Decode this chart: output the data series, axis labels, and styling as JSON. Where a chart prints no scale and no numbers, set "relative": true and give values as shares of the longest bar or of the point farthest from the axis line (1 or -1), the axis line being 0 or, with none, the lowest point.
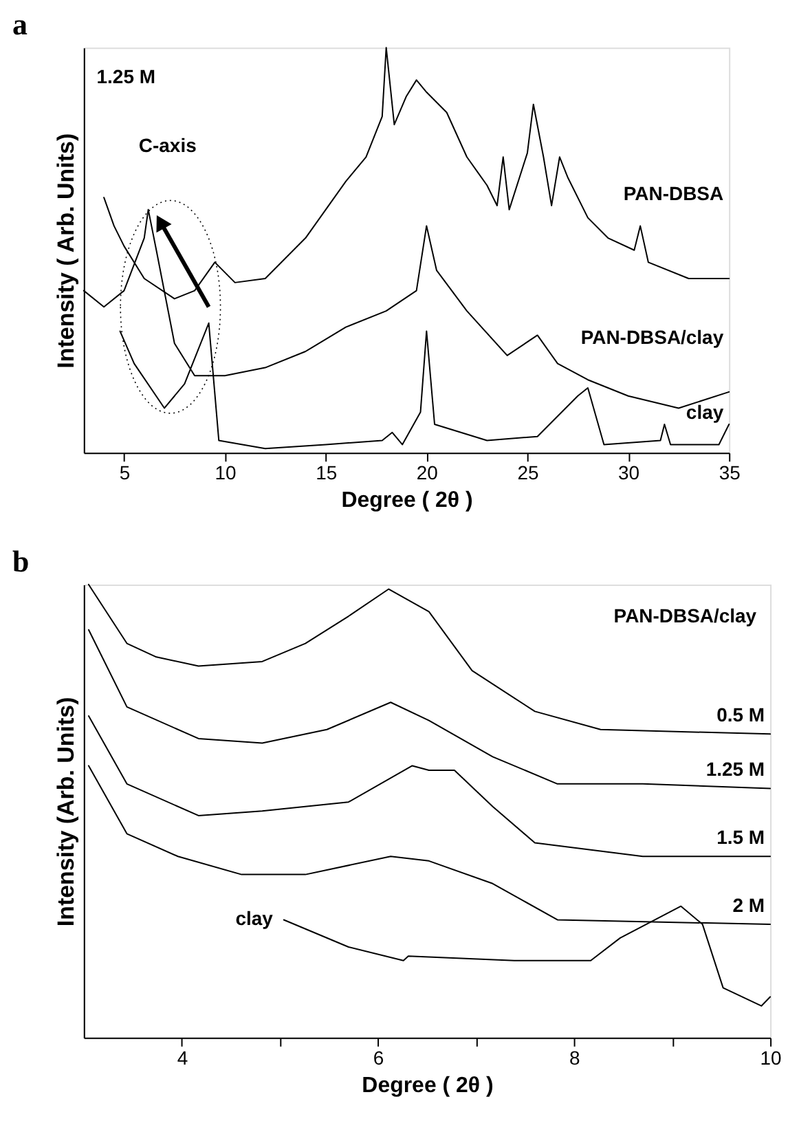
{
  "chart_data": [
    {
      "type": "line",
      "title": "a",
      "xlabel": "Degree ( 2θ )",
      "ylabel": "Intensity ( Arb. Units)",
      "annotations": [
        "1.25 M",
        "C-axis"
      ],
      "relative": true,
      "xlim": [
        3,
        35
      ],
      "xticks": [
        5,
        10,
        15,
        20,
        25,
        30,
        35
      ],
      "tick_labels": "x",
      "grid": false,
      "legend": false,
      "series": [
        {
          "name": "PAN-DBSA",
          "color": "#000000",
          "x": [
            4,
            4.5,
            5,
            6,
            7.5,
            8.5,
            9.5,
            10.5,
            12,
            14,
            16,
            17,
            17.8,
            18,
            18.4,
            19,
            19.5,
            20,
            21,
            22,
            23,
            23.5,
            23.8,
            24.1,
            25,
            25.3,
            25.8,
            26.2,
            26.6,
            27,
            28,
            29,
            30.3,
            30.6,
            31,
            33,
            35
          ],
          "values": [
            0.63,
            0.56,
            0.51,
            0.43,
            0.38,
            0.4,
            0.47,
            0.42,
            0.43,
            0.53,
            0.67,
            0.73,
            0.83,
            1.0,
            0.81,
            0.88,
            0.92,
            0.89,
            0.84,
            0.73,
            0.66,
            0.61,
            0.73,
            0.6,
            0.74,
            0.86,
            0.73,
            0.61,
            0.73,
            0.68,
            0.58,
            0.53,
            0.5,
            0.56,
            0.47,
            0.43,
            0.43
          ]
        },
        {
          "name": "PAN-DBSA/clay",
          "color": "#000000",
          "x": [
            3,
            4,
            5,
            6,
            6.2,
            6.6,
            7.5,
            8.5,
            10,
            12,
            14,
            16,
            18,
            19.5,
            20,
            20.5,
            22,
            24,
            25.5,
            26.5,
            28,
            30,
            32.5,
            35
          ],
          "values": [
            0.4,
            0.36,
            0.4,
            0.53,
            0.6,
            0.5,
            0.27,
            0.19,
            0.19,
            0.21,
            0.25,
            0.31,
            0.35,
            0.4,
            0.56,
            0.45,
            0.35,
            0.24,
            0.29,
            0.22,
            0.18,
            0.14,
            0.11,
            0.15
          ]
        },
        {
          "name": "clay",
          "color": "#000000",
          "x": [
            4.8,
            5.5,
            7,
            8,
            9.2,
            9.7,
            12,
            15,
            17.8,
            18.3,
            18.8,
            19.7,
            20,
            20.4,
            23,
            25.5,
            27.5,
            28,
            28.8,
            31.6,
            31.8,
            32.1,
            34.5,
            35
          ],
          "values": [
            0.3,
            0.22,
            0.11,
            0.17,
            0.32,
            0.03,
            0.01,
            0.02,
            0.03,
            0.05,
            0.02,
            0.1,
            0.3,
            0.07,
            0.03,
            0.04,
            0.14,
            0.16,
            0.02,
            0.03,
            0.07,
            0.02,
            0.02,
            0.07
          ]
        }
      ]
    },
    {
      "type": "line",
      "title": "b",
      "xlabel": "Degree ( 2θ )",
      "ylabel": "Intensity (Arb. Units)",
      "annotations": [
        "PAN-DBSA/clay"
      ],
      "relative": true,
      "xlim": [
        3,
        10
      ],
      "xticks": [
        4,
        {
          "value": 5,
          "label": null
        },
        6,
        {
          "value": 7,
          "label": null
        },
        8,
        {
          "value": 9,
          "label": null
        },
        10
      ],
      "tick_labels": "x",
      "grid": false,
      "legend": false,
      "series": [
        {
          "name": "0.5 M",
          "color": "#000000",
          "x": [
            3.05,
            3.44,
            3.74,
            4.17,
            4.82,
            5.26,
            5.7,
            6.11,
            6.52,
            6.96,
            7.6,
            8.27,
            10
          ],
          "values": [
            1.0,
            0.87,
            0.84,
            0.82,
            0.83,
            0.87,
            0.93,
            0.99,
            0.94,
            0.81,
            0.72,
            0.68,
            0.67
          ]
        },
        {
          "name": "1.25 M",
          "color": "#000000",
          "x": [
            3.05,
            3.44,
            4.17,
            4.82,
            5.48,
            6.13,
            6.52,
            7.17,
            7.83,
            8.7,
            10
          ],
          "values": [
            0.9,
            0.73,
            0.66,
            0.65,
            0.68,
            0.74,
            0.7,
            0.62,
            0.56,
            0.56,
            0.55
          ]
        },
        {
          "name": "1.5 M",
          "color": "#000000",
          "x": [
            3.05,
            3.44,
            4.17,
            4.82,
            5.7,
            6.35,
            6.52,
            6.78,
            7.17,
            7.6,
            8.7,
            10
          ],
          "values": [
            0.71,
            0.56,
            0.49,
            0.5,
            0.52,
            0.6,
            0.59,
            0.59,
            0.51,
            0.43,
            0.4,
            0.4
          ]
        },
        {
          "name": "2 M",
          "color": "#000000",
          "x": [
            3.05,
            3.44,
            3.96,
            4.61,
            5.26,
            6.13,
            6.52,
            7.17,
            7.83,
            10
          ],
          "values": [
            0.6,
            0.45,
            0.4,
            0.36,
            0.36,
            0.4,
            0.39,
            0.34,
            0.26,
            0.25
          ]
        },
        {
          "name": "clay",
          "color": "#000000",
          "x": [
            5.04,
            5.7,
            6.26,
            6.31,
            7.39,
            8.17,
            8.47,
            9.09,
            9.31,
            9.52,
            9.91,
            10
          ],
          "values": [
            0.26,
            0.2,
            0.17,
            0.18,
            0.17,
            0.17,
            0.22,
            0.29,
            0.25,
            0.11,
            0.07,
            0.09
          ]
        }
      ]
    }
  ]
}
